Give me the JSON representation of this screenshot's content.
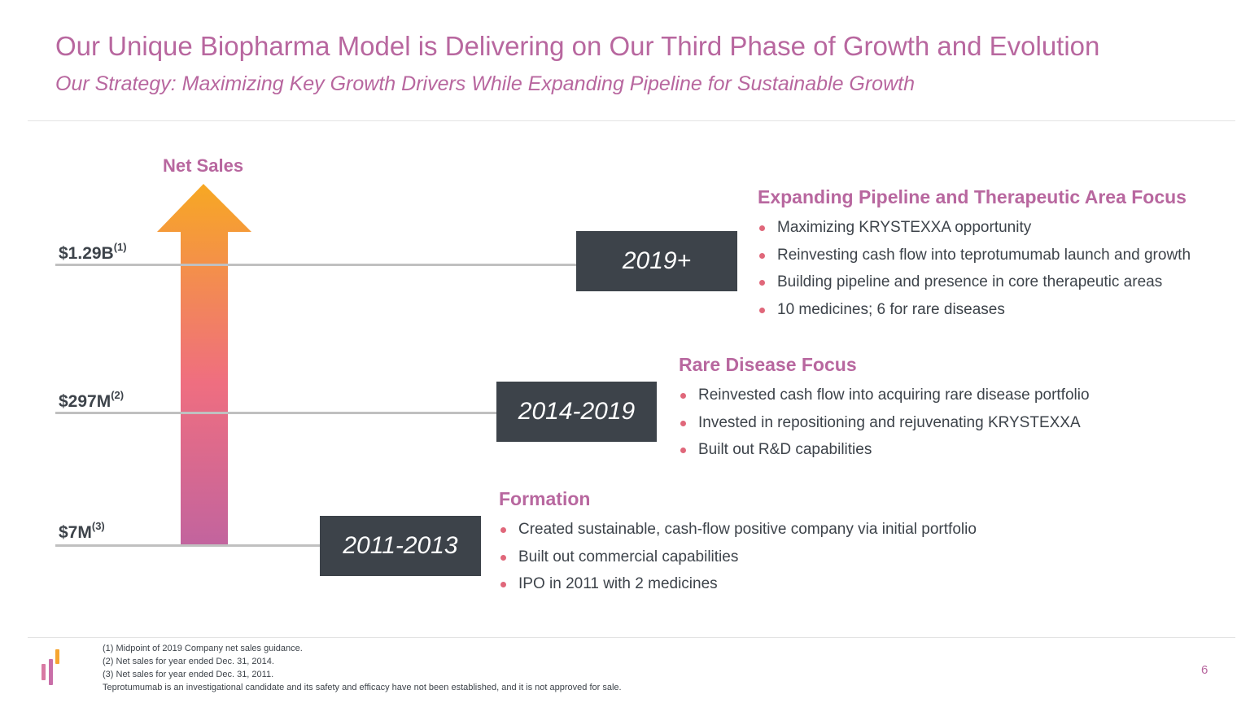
{
  "header": {
    "title": "Our Unique Biopharma Model is Delivering on Our Third Phase of Growth and Evolution",
    "subtitle": "Our Strategy:  Maximizing Key Growth Drivers While Expanding Pipeline for Sustainable Growth"
  },
  "colors": {
    "accent": "#b8679f",
    "dark": "#3d434a",
    "bullet": "#e0677a",
    "arrow_top": "#f7a823",
    "arrow_mid": "#ef6e80",
    "arrow_bottom": "#c2649e"
  },
  "chart": {
    "axis_title": "Net Sales",
    "levels": [
      {
        "value": "$1.29B",
        "note": "(1)"
      },
      {
        "value": "$297M",
        "note": "(2)"
      },
      {
        "value": "$7M",
        "note": "(3)"
      }
    ]
  },
  "phases": [
    {
      "years": "2019+",
      "heading": "Expanding Pipeline and Therapeutic Area Focus",
      "bullets": [
        "Maximizing KRYSTEXXA opportunity",
        "Reinvesting cash flow into teprotumumab launch and growth",
        "Building pipeline and presence in core therapeutic areas",
        "10 medicines; 6 for rare diseases"
      ]
    },
    {
      "years": "2014-2019",
      "heading": "Rare Disease Focus",
      "bullets": [
        "Reinvested cash flow into acquiring rare disease portfolio",
        "Invested in repositioning and rejuvenating KRYSTEXXA",
        "Built out R&D capabilities"
      ]
    },
    {
      "years": "2011-2013",
      "heading": "Formation",
      "bullets": [
        "Created sustainable, cash-flow positive company via initial portfolio",
        "Built out commercial capabilities",
        "IPO in 2011 with 2 medicines"
      ]
    }
  ],
  "footnotes": [
    "(1)  Midpoint of 2019 Company net sales guidance.",
    "(2)  Net sales for year ended Dec. 31, 2014.",
    "(3)  Net sales for year ended Dec. 31, 2011.",
    "Teprotumumab is an investigational candidate and its safety and efficacy have not been established, and it is not approved for sale."
  ],
  "page_number": "6",
  "logo": {
    "icon": "company-logo-icon"
  }
}
